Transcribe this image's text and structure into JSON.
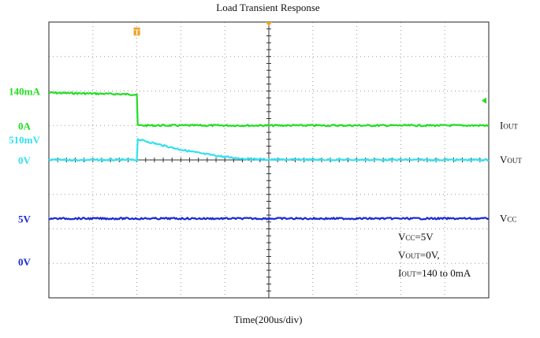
{
  "chart_data": {
    "type": "line",
    "title": "Load Transient Response",
    "xlabel": "Time(200us/div)",
    "ylabel": "",
    "x_units": "div",
    "xlim": [
      0,
      10
    ],
    "y_units": "div",
    "ylim": [
      0,
      8
    ],
    "grid": true,
    "grid_divisions": {
      "x": 10,
      "y": 8
    },
    "trigger_time_div": 2,
    "series": [
      {
        "name": "Iout",
        "color": "#22dd22",
        "level_labels": [
          {
            "text": "140mA",
            "y_div": 6.0
          },
          {
            "text": "0A",
            "y_div": 5.0
          }
        ],
        "right_label": {
          "main": "I",
          "sub": "OUT"
        },
        "points": [
          [
            0,
            5.95
          ],
          [
            2.0,
            5.9
          ],
          [
            2.02,
            5.0
          ],
          [
            10,
            5.0
          ]
        ]
      },
      {
        "name": "Vout",
        "color": "#33e0f0",
        "level_labels": [
          {
            "text": "510mV",
            "y_div": 4.6
          },
          {
            "text": "0V",
            "y_div": 4.0
          }
        ],
        "right_label": {
          "main": "V",
          "sub": "OUT"
        },
        "points": [
          [
            0,
            4.0
          ],
          [
            2.0,
            4.0
          ],
          [
            2.02,
            4.6
          ],
          [
            2.5,
            4.45
          ],
          [
            3.0,
            4.3
          ],
          [
            3.5,
            4.18
          ],
          [
            4.0,
            4.09
          ],
          [
            4.5,
            4.03
          ],
          [
            5.0,
            4.01
          ],
          [
            10,
            4.0
          ]
        ]
      },
      {
        "name": "Vcc",
        "color": "#1a2ad6",
        "level_labels": [
          {
            "text": "5V",
            "y_div": 2.3
          },
          {
            "text": "0V",
            "y_div": 1.05
          }
        ],
        "right_label": {
          "main": "V",
          "sub": "CC"
        },
        "points": [
          [
            0,
            2.3
          ],
          [
            10,
            2.3
          ]
        ]
      }
    ],
    "annotations": [
      {
        "main": "V",
        "sub": "CC",
        "rest": "=5V"
      },
      {
        "main": "V",
        "sub": "OUT",
        "rest": "=0V,"
      },
      {
        "main": "I",
        "sub": "OUT",
        "rest": "=140 to 0mA"
      }
    ],
    "markers": {
      "trigger_color": "#f0a020",
      "trigger_label": "T",
      "right_arrow_color": "#22dd22"
    }
  }
}
